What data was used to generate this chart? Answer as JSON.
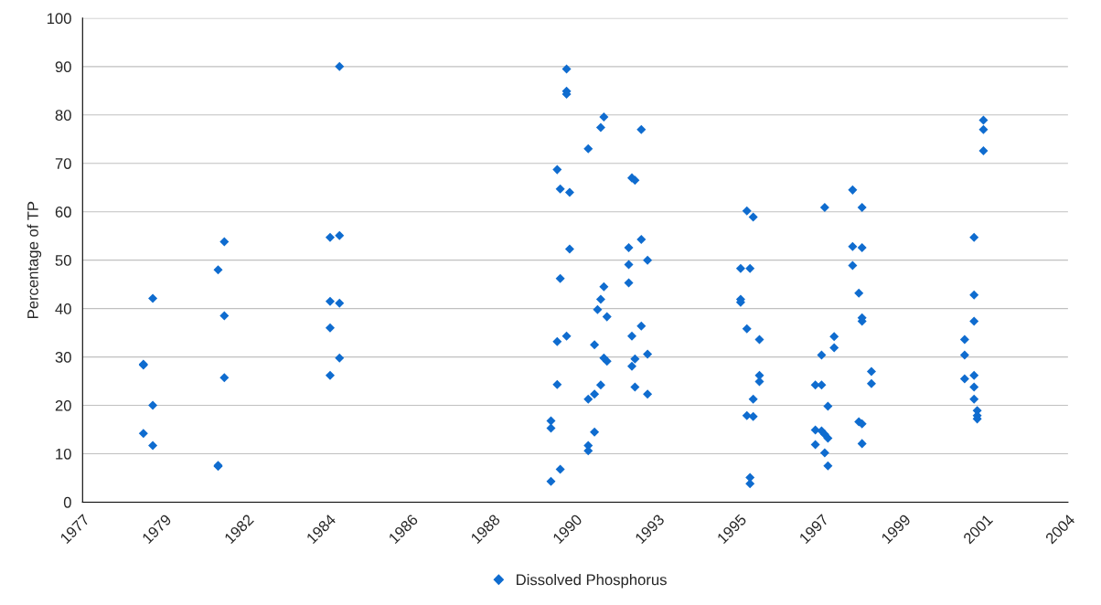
{
  "chart_data": {
    "type": "scatter",
    "ylabel": "Percentage of TP",
    "xlim": [
      "1977-09-13",
      "2004-02-06"
    ],
    "xticks": [
      {
        "value": "1977-09-13",
        "label": "1977"
      },
      {
        "value": "1979-11-24",
        "label": "1979"
      },
      {
        "value": "1982-02-06",
        "label": "1982"
      },
      {
        "value": "1984-04-19",
        "label": "1984"
      },
      {
        "value": "1986-07-02",
        "label": "1986"
      },
      {
        "value": "1988-09-13",
        "label": "1988"
      },
      {
        "value": "1990-11-24",
        "label": "1990"
      },
      {
        "value": "1993-02-06",
        "label": "1993"
      },
      {
        "value": "1995-04-20",
        "label": "1995"
      },
      {
        "value": "1997-07-02",
        "label": "1997"
      },
      {
        "value": "1999-09-13",
        "label": "1999"
      },
      {
        "value": "2001-11-24",
        "label": "2001"
      },
      {
        "value": "2004-02-06",
        "label": "2004"
      }
    ],
    "ylim": [
      0,
      100
    ],
    "yticks": [
      0,
      10,
      20,
      30,
      40,
      50,
      60,
      70,
      80,
      90,
      100
    ],
    "grid": "y",
    "legend": "bottom",
    "marker": "diamond",
    "series": [
      {
        "name": "Dissolved Phosphorus",
        "color": "#0f6ccf",
        "x": [
          "1979-05",
          "1979-05",
          "1979-05",
          "1979-08",
          "1979-08",
          "1979-08",
          "1981-05",
          "1981-05",
          "1981-05",
          "1981-07",
          "1981-07",
          "1981-07",
          "1984-05",
          "1984-08",
          "1984-08",
          "1984-05",
          "1984-08",
          "1984-05",
          "1984-08",
          "1984-05",
          "1990-04",
          "1990-04",
          "1990-04",
          "1990-06",
          "1990-07",
          "1990-07",
          "1990-06",
          "1990-06",
          "1990-07",
          "1990-09",
          "1990-09",
          "1990-09",
          "1990-10",
          "1990-10",
          "1990-09",
          "1991-04",
          "1991-04",
          "1991-06",
          "1991-04",
          "1991-04",
          "1991-06",
          "1991-06",
          "1991-07",
          "1991-08",
          "1991-08",
          "1991-09",
          "1991-09",
          "1991-08",
          "1991-09",
          "1991-10",
          "1991-10",
          "1992-05",
          "1992-05",
          "1992-05",
          "1992-06",
          "1992-07",
          "1992-06",
          "1992-06",
          "1992-07",
          "1992-07",
          "1992-09",
          "1992-09",
          "1992-09",
          "1992-11",
          "1992-11",
          "1992-11",
          "1995-05",
          "1995-05",
          "1995-05",
          "1995-07",
          "1995-08",
          "1995-09",
          "1995-07",
          "1995-07",
          "1995-09",
          "1995-09",
          "1995-08",
          "1995-08",
          "1995-11",
          "1995-11",
          "1995-11",
          "1997-05",
          "1997-05",
          "1997-05",
          "1997-07",
          "1997-07",
          "1997-08",
          "1997-07",
          "1997-08",
          "1997-08",
          "1997-09",
          "1997-09",
          "1997-09",
          "1997-11",
          "1997-11",
          "1998-05",
          "1998-05",
          "1998-05",
          "1998-07",
          "1998-07",
          "1998-08",
          "1998-08",
          "1998-08",
          "1998-08",
          "1998-08",
          "1998-08",
          "1998-11",
          "1998-11",
          "2001-05",
          "2001-05",
          "2001-05",
          "2001-08",
          "2001-08",
          "2001-08",
          "2001-08",
          "2001-08",
          "2001-08",
          "2001-09",
          "2001-09",
          "2001-09",
          "2001-11",
          "2001-11",
          "2001-11"
        ],
        "values": [
          28.3,
          28.5,
          14.2,
          42.1,
          20,
          11.7,
          7.4,
          7.6,
          48,
          53.8,
          38.5,
          25.7,
          54.7,
          55.1,
          90,
          41.5,
          41.1,
          36,
          29.8,
          26.2,
          16.8,
          15.3,
          4.3,
          68.7,
          64.7,
          46.2,
          33.2,
          24.3,
          6.8,
          89.5,
          84.9,
          84.3,
          64,
          52.3,
          34.3,
          73,
          21.3,
          22.3,
          11.7,
          10.6,
          32.5,
          14.5,
          39.8,
          41.9,
          77.4,
          79.6,
          44.5,
          24.2,
          29.8,
          38.3,
          29.1,
          52.6,
          49.1,
          45.3,
          67,
          66.5,
          34.3,
          28.1,
          29.6,
          23.8,
          77,
          54.3,
          36.4,
          50,
          30.6,
          22.3,
          48.3,
          41.9,
          41.3,
          60.2,
          48.3,
          58.9,
          35.8,
          17.9,
          17.7,
          21.3,
          5.1,
          3.8,
          33.6,
          26.2,
          24.9,
          24.2,
          14.9,
          11.9,
          24.2,
          30.4,
          60.9,
          14.7,
          14,
          10.2,
          13.2,
          19.8,
          7.5,
          34.2,
          31.9,
          64.5,
          52.8,
          48.9,
          43.2,
          16.6,
          60.9,
          52.6,
          37.4,
          38.1,
          16.2,
          12.1,
          27,
          24.5,
          33.6,
          30.4,
          25.5,
          54.7,
          42.8,
          37.4,
          26.2,
          23.8,
          21.3,
          18.9,
          17.9,
          17.2,
          78.9,
          77,
          72.6
        ]
      }
    ]
  }
}
